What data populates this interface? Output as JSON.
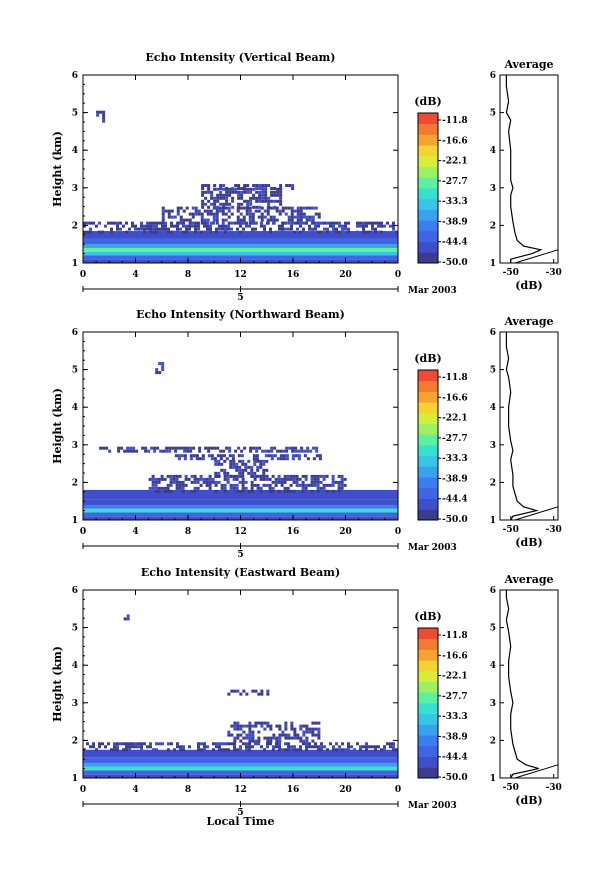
{
  "colors": {
    "scale": [
      "#3b3b8f",
      "#3f4fc9",
      "#3f64e6",
      "#3a7ff0",
      "#39a2ee",
      "#37c6e8",
      "#39e0d0",
      "#5ef0a0",
      "#9ff060",
      "#d8ec3a",
      "#f4d22f",
      "#f7a42e",
      "#f47a32",
      "#ee4b35"
    ],
    "profile": "#000000"
  },
  "common": {
    "date_label": "Mar 2003",
    "x_tick_labels": [
      "0",
      "4",
      "8",
      "12",
      "16",
      "20",
      "0"
    ],
    "day_label": "5",
    "y_tick_labels": [
      "1",
      "2",
      "3",
      "4",
      "5",
      "6"
    ],
    "ylabel": "Height (km)",
    "colorbar_unit": "(dB)",
    "colorbar_ticks": [
      "-11.8",
      "-16.6",
      "-22.1",
      "-27.7",
      "-33.3",
      "-38.9",
      "-44.4",
      "-50.0"
    ],
    "avg_title": "Average",
    "avg_xlabel": "(dB)",
    "avg_x_tick_labels": [
      "-50",
      "-30"
    ],
    "xlabel": "Local Time"
  },
  "chart_data": [
    {
      "type": "heatmap",
      "title": "Echo Intensity (Vertical Beam)",
      "x_range": [
        0,
        24
      ],
      "ylim": [
        1,
        6
      ],
      "clim": [
        -50.0,
        -11.8
      ],
      "layers": [
        {
          "y0": 1.0,
          "y1": 1.1,
          "x0": 0,
          "x1": 24,
          "value": -47
        },
        {
          "y0": 1.1,
          "y1": 1.2,
          "x0": 0,
          "x1": 24,
          "value": -42
        },
        {
          "y0": 1.2,
          "y1": 1.3,
          "x0": 0,
          "x1": 24,
          "value": -35
        },
        {
          "y0": 1.3,
          "y1": 1.4,
          "x0": 0,
          "x1": 24,
          "value": -30
        },
        {
          "y0": 1.4,
          "y1": 1.5,
          "x0": 0,
          "x1": 24,
          "value": -38
        },
        {
          "y0": 1.5,
          "y1": 1.65,
          "x0": 0,
          "x1": 24,
          "value": -44
        },
        {
          "y0": 1.65,
          "y1": 1.85,
          "x0": 0,
          "x1": 24,
          "value": -47
        }
      ],
      "features": [
        {
          "y0": 1.85,
          "y1": 2.1,
          "x0": 0,
          "x1": 24,
          "value": -49
        },
        {
          "y0": 2.1,
          "y1": 2.5,
          "x0": 6,
          "x1": 18,
          "value": -49
        },
        {
          "y0": 2.45,
          "y1": 3.0,
          "x0": 9,
          "x1": 15,
          "value": -49
        },
        {
          "y0": 3.0,
          "y1": 3.1,
          "x0": 9,
          "x1": 16,
          "value": -49
        },
        {
          "y0": 4.8,
          "y1": 5.05,
          "x0": 1,
          "x1": 1.6,
          "value": -49
        }
      ],
      "average_profile": [
        [
          -50,
          1.0
        ],
        [
          -50,
          1.1
        ],
        [
          -40,
          1.25
        ],
        [
          -36,
          1.35
        ],
        [
          -44,
          1.45
        ],
        [
          -47,
          1.6
        ],
        [
          -48,
          1.8
        ],
        [
          -49,
          2.1
        ],
        [
          -50,
          2.5
        ],
        [
          -50,
          2.8
        ],
        [
          -49,
          3.0
        ],
        [
          -50,
          3.2
        ],
        [
          -50,
          3.5
        ],
        [
          -50,
          4.0
        ],
        [
          -51,
          4.5
        ],
        [
          -50,
          4.8
        ],
        [
          -52,
          5.0
        ],
        [
          -51,
          5.3
        ],
        [
          -52,
          5.7
        ],
        [
          -52,
          6.0
        ]
      ]
    },
    {
      "type": "heatmap",
      "title": "Echo Intensity (Northward Beam)",
      "x_range": [
        0,
        24
      ],
      "ylim": [
        1,
        6
      ],
      "clim": [
        -50.0,
        -11.8
      ],
      "layers": [
        {
          "y0": 1.0,
          "y1": 1.1,
          "x0": 0,
          "x1": 24,
          "value": -47
        },
        {
          "y0": 1.1,
          "y1": 1.2,
          "x0": 0,
          "x1": 24,
          "value": -42
        },
        {
          "y0": 1.2,
          "y1": 1.3,
          "x0": 0,
          "x1": 24,
          "value": -33
        },
        {
          "y0": 1.3,
          "y1": 1.4,
          "x0": 0,
          "x1": 24,
          "value": -40
        },
        {
          "y0": 1.4,
          "y1": 1.55,
          "x0": 0,
          "x1": 24,
          "value": -45
        },
        {
          "y0": 1.55,
          "y1": 1.8,
          "x0": 0,
          "x1": 24,
          "value": -47
        }
      ],
      "features": [
        {
          "y0": 1.8,
          "y1": 2.2,
          "x0": 5,
          "x1": 20,
          "value": -49
        },
        {
          "y0": 2.2,
          "y1": 2.6,
          "x0": 10,
          "x1": 14,
          "value": -49
        },
        {
          "y0": 2.6,
          "y1": 2.75,
          "x0": 7,
          "x1": 18,
          "value": -49
        },
        {
          "y0": 2.85,
          "y1": 2.95,
          "x0": 1,
          "x1": 18,
          "value": -49
        },
        {
          "y0": 4.9,
          "y1": 5.2,
          "x0": 5.5,
          "x1": 6.0,
          "value": -49
        }
      ],
      "average_profile": [
        [
          -50,
          1.0
        ],
        [
          -49,
          1.1
        ],
        [
          -38,
          1.25
        ],
        [
          -44,
          1.35
        ],
        [
          -47,
          1.5
        ],
        [
          -48,
          1.7
        ],
        [
          -49,
          1.9
        ],
        [
          -49,
          2.2
        ],
        [
          -50,
          2.6
        ],
        [
          -49,
          2.85
        ],
        [
          -50,
          3.1
        ],
        [
          -51,
          3.5
        ],
        [
          -51,
          4.0
        ],
        [
          -50,
          4.4
        ],
        [
          -51,
          4.8
        ],
        [
          -52,
          5.0
        ],
        [
          -51,
          5.3
        ],
        [
          -52,
          5.6
        ],
        [
          -52,
          6.0
        ]
      ]
    },
    {
      "type": "heatmap",
      "title": "Echo Intensity (Eastward Beam)",
      "x_range": [
        0,
        24
      ],
      "ylim": [
        1,
        6
      ],
      "clim": [
        -50.0,
        -11.8
      ],
      "layers": [
        {
          "y0": 1.0,
          "y1": 1.1,
          "x0": 0,
          "x1": 24,
          "value": -47
        },
        {
          "y0": 1.1,
          "y1": 1.2,
          "x0": 0,
          "x1": 24,
          "value": -43
        },
        {
          "y0": 1.2,
          "y1": 1.3,
          "x0": 0,
          "x1": 24,
          "value": -33
        },
        {
          "y0": 1.3,
          "y1": 1.4,
          "x0": 0,
          "x1": 24,
          "value": -38
        },
        {
          "y0": 1.4,
          "y1": 1.55,
          "x0": 0,
          "x1": 24,
          "value": -44
        },
        {
          "y0": 1.55,
          "y1": 1.75,
          "x0": 0,
          "x1": 24,
          "value": -47
        }
      ],
      "features": [
        {
          "y0": 1.75,
          "y1": 1.95,
          "x0": 0,
          "x1": 24,
          "value": -49
        },
        {
          "y0": 1.95,
          "y1": 2.5,
          "x0": 11,
          "x1": 18,
          "value": -49
        },
        {
          "y0": 3.25,
          "y1": 3.35,
          "x0": 11,
          "x1": 14,
          "value": -49
        },
        {
          "y0": 5.2,
          "y1": 5.35,
          "x0": 3.1,
          "x1": 3.4,
          "value": -49
        }
      ],
      "average_profile": [
        [
          -50,
          1.0
        ],
        [
          -49,
          1.1
        ],
        [
          -37,
          1.25
        ],
        [
          -43,
          1.35
        ],
        [
          -47,
          1.5
        ],
        [
          -48,
          1.7
        ],
        [
          -49,
          1.9
        ],
        [
          -50,
          2.3
        ],
        [
          -50,
          2.7
        ],
        [
          -49,
          3.0
        ],
        [
          -50,
          3.3
        ],
        [
          -51,
          3.7
        ],
        [
          -51,
          4.1
        ],
        [
          -50,
          4.5
        ],
        [
          -51,
          4.9
        ],
        [
          -52,
          5.2
        ],
        [
          -51,
          5.5
        ],
        [
          -52,
          5.8
        ],
        [
          -52,
          6.0
        ]
      ]
    }
  ]
}
